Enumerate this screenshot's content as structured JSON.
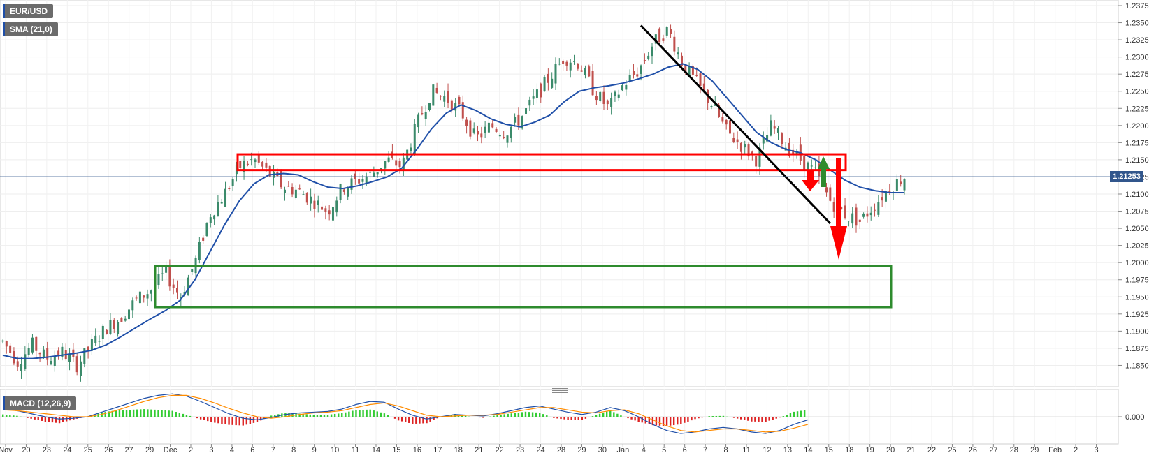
{
  "symbol_label": "EUR/USD",
  "sma_label": "SMA (21,0)",
  "macd_label": "MACD (12,26,9)",
  "current_price": "1.21253",
  "macd_zero_label": "0.000",
  "colors": {
    "up_candle": "#3a8a6a",
    "down_candle": "#c0504d",
    "sma_line": "#1f4fa8",
    "resistance_box": "#ff0000",
    "support_box": "#2e8b2e",
    "trendline": "#000000",
    "arrow_up": "#2e8b2e",
    "arrow_down": "#ff0000",
    "macd_line": "#1f4fa8",
    "signal_line": "#ff8c00",
    "hist_pos": "#33cc33",
    "hist_neg": "#dd2222",
    "price_label_bg": "#31568c"
  },
  "chart_data": {
    "type": "candlestick",
    "ylim": [
      1.1825,
      1.2375
    ],
    "y_ticks": [
      "1.2375",
      "1.2350",
      "1.2325",
      "1.2300",
      "1.2275",
      "1.2250",
      "1.2225",
      "1.2200",
      "1.2175",
      "1.2150",
      "1.2125",
      "1.2100",
      "1.2075",
      "1.2050",
      "1.2025",
      "1.2000",
      "1.1975",
      "1.1950",
      "1.1925",
      "1.1900",
      "1.1875",
      "1.1850"
    ],
    "x_ticks": [
      "Nov",
      "20",
      "23",
      "24",
      "25",
      "26",
      "27",
      "29",
      "Dec",
      "2",
      "3",
      "4",
      "6",
      "7",
      "8",
      "9",
      "10",
      "11",
      "14",
      "15",
      "16",
      "17",
      "18",
      "21",
      "22",
      "23",
      "24",
      "28",
      "29",
      "30",
      "Jan",
      "4",
      "5",
      "6",
      "7",
      "8",
      "11",
      "12",
      "13",
      "14",
      "15",
      "18",
      "19",
      "20",
      "21",
      "22",
      "25",
      "26",
      "27",
      "28",
      "29",
      "Feb",
      "2",
      "3"
    ],
    "x_count": 60,
    "price_path": [
      [
        0,
        1.1885
      ],
      [
        2,
        1.1855
      ],
      [
        4,
        1.188
      ],
      [
        6,
        1.186
      ],
      [
        8,
        1.187
      ],
      [
        10,
        1.185
      ],
      [
        12,
        1.188
      ],
      [
        14,
        1.1905
      ],
      [
        16,
        1.192
      ],
      [
        18,
        1.1945
      ],
      [
        20,
        1.196
      ],
      [
        22,
        1.1985
      ],
      [
        24,
        1.195
      ],
      [
        26,
        1.2
      ],
      [
        28,
        1.207
      ],
      [
        30,
        1.21
      ],
      [
        32,
        1.214
      ],
      [
        34,
        1.215
      ],
      [
        36,
        1.213
      ],
      [
        38,
        1.211
      ],
      [
        40,
        1.2105
      ],
      [
        42,
        1.209
      ],
      [
        44,
        1.2075
      ],
      [
        46,
        1.211
      ],
      [
        48,
        1.212
      ],
      [
        50,
        1.213
      ],
      [
        52,
        1.215
      ],
      [
        54,
        1.214
      ],
      [
        56,
        1.22
      ],
      [
        58,
        1.225
      ],
      [
        60,
        1.224
      ],
      [
        62,
        1.222
      ],
      [
        64,
        1.218
      ],
      [
        66,
        1.22
      ],
      [
        68,
        1.219
      ],
      [
        70,
        1.221
      ],
      [
        72,
        1.224
      ],
      [
        74,
        1.227
      ],
      [
        76,
        1.23
      ],
      [
        78,
        1.229
      ],
      [
        80,
        1.225
      ],
      [
        82,
        1.2225
      ],
      [
        84,
        1.226
      ],
      [
        86,
        1.228
      ],
      [
        88,
        1.232
      ],
      [
        90,
        1.234
      ],
      [
        92,
        1.229
      ],
      [
        94,
        1.226
      ],
      [
        96,
        1.223
      ],
      [
        98,
        1.219
      ],
      [
        100,
        1.217
      ],
      [
        102,
        1.215
      ],
      [
        104,
        1.22
      ],
      [
        106,
        1.217
      ],
      [
        108,
        1.215
      ],
      [
        110,
        1.213
      ],
      [
        112,
        1.209
      ],
      [
        114,
        1.207
      ],
      [
        116,
        1.206
      ],
      [
        118,
        1.2085
      ],
      [
        120,
        1.211
      ],
      [
        122,
        1.2125
      ]
    ],
    "sma_path": [
      [
        0,
        1.1865
      ],
      [
        2,
        1.186
      ],
      [
        4,
        1.186
      ],
      [
        6,
        1.1862
      ],
      [
        8,
        1.1865
      ],
      [
        10,
        1.1868
      ],
      [
        12,
        1.1872
      ],
      [
        14,
        1.188
      ],
      [
        16,
        1.1892
      ],
      [
        18,
        1.1905
      ],
      [
        20,
        1.1918
      ],
      [
        22,
        1.193
      ],
      [
        24,
        1.1945
      ],
      [
        26,
        1.1975
      ],
      [
        28,
        1.2015
      ],
      [
        30,
        1.2055
      ],
      [
        32,
        1.209
      ],
      [
        34,
        1.2115
      ],
      [
        36,
        1.2128
      ],
      [
        38,
        1.213
      ],
      [
        40,
        1.2128
      ],
      [
        42,
        1.2118
      ],
      [
        44,
        1.211
      ],
      [
        46,
        1.2108
      ],
      [
        48,
        1.2112
      ],
      [
        50,
        1.2118
      ],
      [
        52,
        1.2125
      ],
      [
        54,
        1.2138
      ],
      [
        56,
        1.2165
      ],
      [
        58,
        1.2195
      ],
      [
        60,
        1.2218
      ],
      [
        62,
        1.223
      ],
      [
        64,
        1.2222
      ],
      [
        66,
        1.221
      ],
      [
        68,
        1.2202
      ],
      [
        70,
        1.2198
      ],
      [
        72,
        1.2205
      ],
      [
        74,
        1.2215
      ],
      [
        76,
        1.2235
      ],
      [
        78,
        1.225
      ],
      [
        80,
        1.2255
      ],
      [
        82,
        1.2258
      ],
      [
        84,
        1.2262
      ],
      [
        86,
        1.2268
      ],
      [
        88,
        1.2275
      ],
      [
        90,
        1.2285
      ],
      [
        92,
        1.229
      ],
      [
        94,
        1.2282
      ],
      [
        96,
        1.2265
      ],
      [
        98,
        1.224
      ],
      [
        100,
        1.2215
      ],
      [
        102,
        1.219
      ],
      [
        104,
        1.2175
      ],
      [
        106,
        1.2165
      ],
      [
        108,
        1.216
      ],
      [
        110,
        1.215
      ],
      [
        112,
        1.2135
      ],
      [
        114,
        1.212
      ],
      [
        116,
        1.211
      ],
      [
        118,
        1.2105
      ],
      [
        120,
        1.2102
      ],
      [
        122,
        1.2102
      ]
    ],
    "resistance_zone": [
      1.2135,
      1.2158
    ],
    "support_zone": [
      1.1935,
      1.1995
    ],
    "trendline": [
      [
        1.2346,
        1.2057
      ]
    ],
    "current_price": 1.21253
  },
  "macd_data": {
    "macd": [
      0.001,
      0.0008,
      0.0004,
      0.0,
      -0.0003,
      -0.0002,
      0.0,
      0.0006,
      0.0012,
      0.0018,
      0.0024,
      0.0028,
      0.003,
      0.0027,
      0.002,
      0.0012,
      0.0004,
      -0.0002,
      -0.0004,
      -0.0001,
      0.0003,
      0.0005,
      0.0006,
      0.0007,
      0.001,
      0.0016,
      0.002,
      0.0019,
      0.001,
      0.0002,
      -0.0003,
      0.0,
      0.0003,
      0.0002,
      0.0001,
      0.0004,
      0.0008,
      0.0012,
      0.0014,
      0.001,
      0.0006,
      0.0003,
      0.0006,
      0.0012,
      0.0008,
      0.0,
      -0.001,
      -0.0018,
      -0.0022,
      -0.002,
      -0.0016,
      -0.0014,
      -0.0016,
      -0.002,
      -0.0022,
      -0.0018,
      -0.001,
      -0.0004
    ],
    "signal": [
      0.0009,
      0.0008,
      0.0006,
      0.0004,
      0.0002,
      0.0,
      0.0,
      0.0003,
      0.0008,
      0.0014,
      0.002,
      0.0025,
      0.0028,
      0.0028,
      0.0024,
      0.0018,
      0.0011,
      0.0005,
      0.0,
      -0.0002,
      0.0,
      0.0003,
      0.0005,
      0.0006,
      0.0008,
      0.0012,
      0.0016,
      0.0018,
      0.0014,
      0.0008,
      0.0002,
      0.0,
      0.0001,
      0.0002,
      0.0002,
      0.0003,
      0.0006,
      0.0009,
      0.0012,
      0.0012,
      0.0009,
      0.0006,
      0.0005,
      0.0008,
      0.0009,
      0.0004,
      -0.0004,
      -0.0012,
      -0.0018,
      -0.002,
      -0.0018,
      -0.0016,
      -0.0016,
      -0.0018,
      -0.002,
      -0.0019,
      -0.0015,
      -0.001
    ]
  }
}
